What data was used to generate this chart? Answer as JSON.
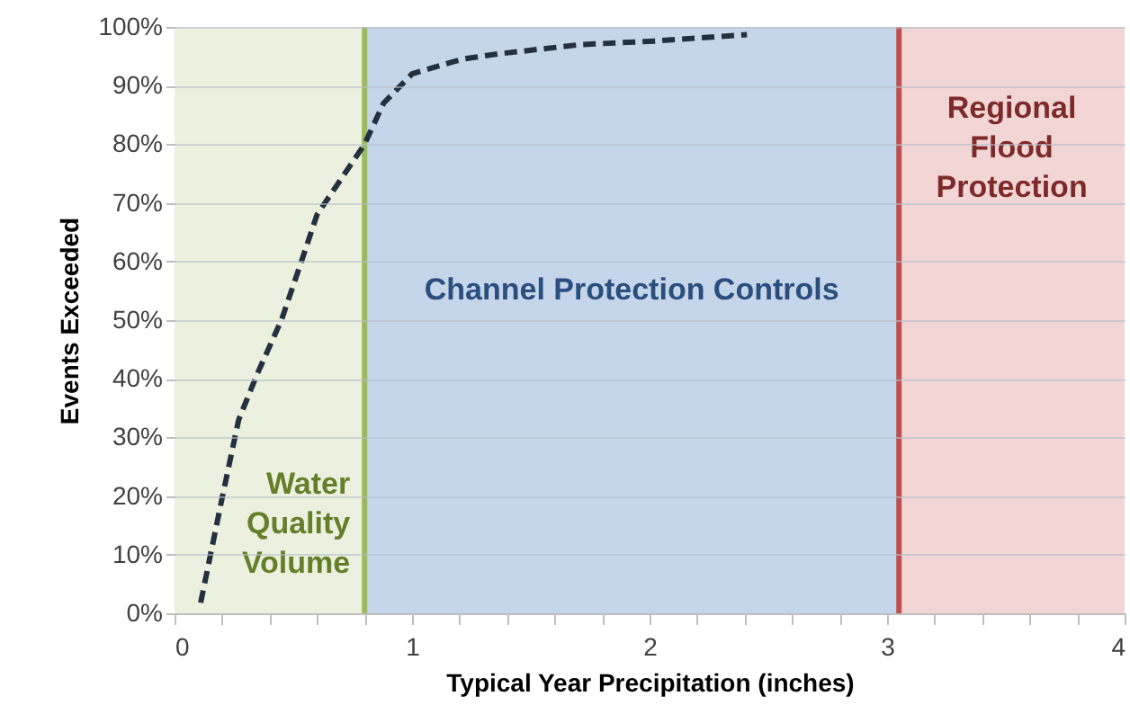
{
  "chart_data": {
    "type": "line",
    "xlabel": "Typical Year Precipitation (inches)",
    "ylabel": "Events Exceeded",
    "x": [
      0.11,
      0.2,
      0.27,
      0.35,
      0.45,
      0.53,
      0.6,
      0.7,
      0.8,
      0.88,
      1.0,
      1.21,
      1.36,
      1.71,
      2.02,
      2.41
    ],
    "series": [
      {
        "color": "#243040",
        "line_style": "dashed",
        "values": [
          1.8,
          19.6,
          33,
          41,
          50,
          59.5,
          68,
          74,
          80,
          87,
          92,
          94.5,
          95.4,
          97,
          97.6,
          98.7
        ]
      }
    ],
    "xlim": [
      0,
      4
    ],
    "xticks": [
      0,
      {
        "value": 0.2,
        "label": null
      },
      {
        "value": 0.4,
        "label": null
      },
      {
        "value": 0.6,
        "label": null
      },
      {
        "value": 0.8,
        "label": null
      },
      1,
      {
        "value": 1.2,
        "label": null
      },
      {
        "value": 1.4,
        "label": null
      },
      {
        "value": 1.6,
        "label": null
      },
      {
        "value": 1.8,
        "label": null
      },
      2,
      {
        "value": 2.2,
        "label": null
      },
      {
        "value": 2.4,
        "label": null
      },
      {
        "value": 2.6,
        "label": null
      },
      {
        "value": 2.8,
        "label": null
      },
      3,
      {
        "value": 3.2,
        "label": null
      },
      {
        "value": 3.4,
        "label": null
      },
      {
        "value": 3.6,
        "label": null
      },
      {
        "value": 3.8,
        "label": null
      },
      4
    ],
    "ylim": [
      0,
      100
    ],
    "yticks": [
      {
        "value": 0,
        "label": "0%"
      },
      {
        "value": 10,
        "label": "10%"
      },
      {
        "value": 20,
        "label": "20%"
      },
      {
        "value": 30,
        "label": "30%"
      },
      {
        "value": 40,
        "label": "40%"
      },
      {
        "value": 50,
        "label": "50%"
      },
      {
        "value": 60,
        "label": "60%"
      },
      {
        "value": 70,
        "label": "70%"
      },
      {
        "value": 80,
        "label": "80%"
      },
      {
        "value": 90,
        "label": "90%"
      },
      {
        "value": 100,
        "label": "100%"
      }
    ],
    "grid": "y",
    "marker": "none",
    "bands": [
      {
        "axis": "x",
        "from": 0,
        "to": 0.8,
        "label": "Water Quality Volume",
        "color": "#ebf1de"
      },
      {
        "axis": "x",
        "from": 0.8,
        "to": 3.05,
        "label": "Channel Protection Controls",
        "color": "#c5d5ea"
      },
      {
        "axis": "x",
        "from": 3.05,
        "to": 4,
        "label": "Regional Flood Protection",
        "color": "#f2d5d5"
      }
    ],
    "ref_lines": [
      {
        "axis": "x",
        "value": 0.8,
        "color": "#9bbb59",
        "line_style": "solid"
      },
      {
        "axis": "x",
        "value": 3.05,
        "color": "#c0504d",
        "line_style": "solid"
      }
    ]
  }
}
